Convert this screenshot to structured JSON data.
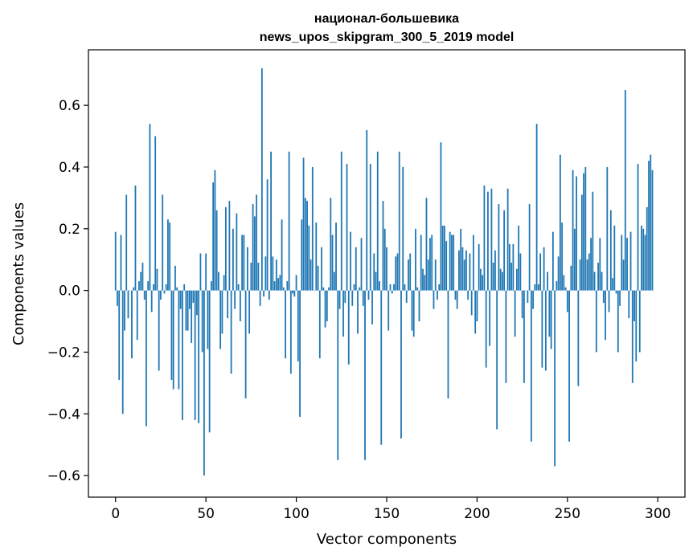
{
  "chart_data": {
    "type": "bar",
    "title": "национал-большевика",
    "subtitle": "news_upos_skipgram_300_5_2019 model",
    "xlabel": "Vector components",
    "ylabel": "Components values",
    "xlim": [
      -15,
      315
    ],
    "ylim": [
      -0.67,
      0.78
    ],
    "xticks": [
      0,
      50,
      100,
      150,
      200,
      250,
      300
    ],
    "yticks": [
      -0.6,
      -0.4,
      -0.2,
      0.0,
      0.2,
      0.4,
      0.6
    ],
    "ytick_labels": [
      "−0.6",
      "−0.4",
      "−0.2",
      "0.0",
      "0.2",
      "0.4",
      "0.6"
    ],
    "grid": false,
    "legend": "none",
    "bar_color": "#1f77b4",
    "values": [
      0.19,
      -0.05,
      -0.29,
      0.18,
      -0.4,
      -0.13,
      0.31,
      -0.09,
      0.0,
      -0.22,
      0.01,
      0.34,
      -0.16,
      0.03,
      0.06,
      0.09,
      -0.03,
      -0.44,
      0.03,
      0.54,
      -0.07,
      0.02,
      0.5,
      0.07,
      -0.26,
      -0.03,
      0.31,
      -0.01,
      0.02,
      0.23,
      0.22,
      -0.29,
      -0.32,
      0.08,
      0.01,
      -0.32,
      -0.06,
      -0.42,
      0.02,
      -0.13,
      -0.13,
      -0.06,
      -0.17,
      -0.04,
      -0.42,
      -0.08,
      -0.43,
      0.12,
      -0.2,
      -0.6,
      0.12,
      -0.19,
      -0.46,
      0.03,
      0.35,
      0.39,
      0.26,
      0.06,
      -0.19,
      -0.14,
      0.05,
      0.27,
      -0.09,
      0.29,
      -0.27,
      0.2,
      -0.06,
      0.25,
      0.02,
      -0.1,
      0.18,
      0.18,
      -0.35,
      0.14,
      -0.14,
      0.09,
      0.28,
      0.24,
      0.31,
      0.09,
      -0.05,
      0.72,
      -0.02,
      0.11,
      0.36,
      -0.03,
      0.45,
      0.11,
      0.03,
      0.1,
      0.04,
      0.05,
      0.23,
      0.01,
      -0.22,
      0.03,
      0.45,
      -0.27,
      -0.01,
      -0.02,
      0.05,
      -0.23,
      -0.41,
      0.23,
      0.43,
      0.3,
      0.29,
      0.21,
      0.1,
      0.4,
      0.0,
      0.22,
      0.08,
      -0.22,
      0.14,
      0.01,
      -0.12,
      -0.1,
      0.01,
      0.3,
      0.18,
      0.06,
      0.22,
      -0.55,
      -0.06,
      0.45,
      -0.15,
      -0.04,
      0.41,
      -0.24,
      0.19,
      -0.05,
      0.02,
      0.14,
      -0.14,
      0.01,
      0.17,
      -0.05,
      -0.55,
      0.52,
      -0.03,
      0.41,
      -0.11,
      0.12,
      0.06,
      0.45,
      0.03,
      -0.5,
      0.29,
      0.2,
      0.14,
      -0.13,
      0.02,
      -0.01,
      0.02,
      0.11,
      0.12,
      0.45,
      -0.48,
      0.4,
      0.02,
      -0.04,
      0.1,
      0.12,
      -0.13,
      -0.15,
      0.2,
      0.01,
      -0.1,
      0.18,
      0.07,
      0.05,
      0.3,
      0.1,
      0.17,
      0.18,
      -0.06,
      0.1,
      -0.03,
      0.02,
      0.48,
      0.21,
      0.21,
      0.16,
      -0.35,
      0.19,
      0.18,
      0.18,
      -0.03,
      -0.06,
      0.13,
      0.2,
      0.14,
      0.1,
      0.13,
      -0.03,
      0.12,
      -0.08,
      0.18,
      -0.14,
      -0.1,
      0.15,
      0.07,
      0.05,
      0.34,
      -0.25,
      0.32,
      -0.18,
      0.33,
      0.09,
      0.13,
      -0.45,
      0.28,
      0.07,
      0.06,
      0.26,
      -0.3,
      0.33,
      0.15,
      0.09,
      0.15,
      -0.15,
      0.07,
      0.21,
      0.12,
      -0.09,
      -0.3,
      0.0,
      -0.04,
      0.28,
      -0.49,
      -0.06,
      0.02,
      0.54,
      0.02,
      0.12,
      -0.25,
      0.14,
      -0.26,
      0.06,
      -0.15,
      -0.19,
      0.19,
      -0.57,
      0.03,
      0.11,
      0.44,
      0.22,
      0.05,
      0.01,
      -0.07,
      -0.49,
      0.08,
      0.39,
      0.2,
      0.37,
      -0.31,
      0.1,
      0.31,
      0.38,
      0.4,
      0.1,
      0.12,
      0.17,
      0.32,
      0.06,
      -0.2,
      0.09,
      0.17,
      0.06,
      -0.04,
      -0.16,
      0.4,
      -0.07,
      0.26,
      0.04,
      0.21,
      -0.01,
      -0.2,
      -0.05,
      0.18,
      0.1,
      0.65,
      0.17,
      -0.09,
      0.19,
      -0.3,
      -0.1,
      -0.23,
      0.41,
      -0.2,
      0.21,
      0.2,
      0.18,
      0.27,
      0.42,
      0.44,
      0.39
    ]
  }
}
